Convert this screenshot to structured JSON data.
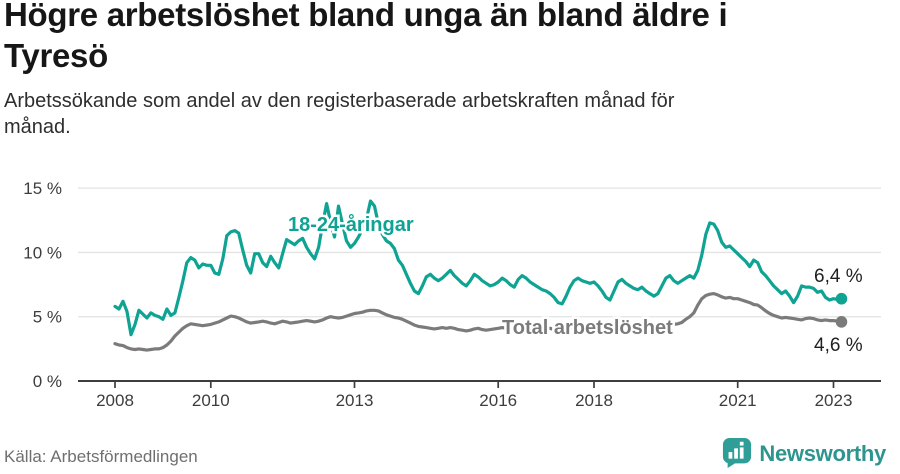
{
  "header": {
    "title_lines": [
      "Högre arbetslöshet bland unga än bland äldre i",
      "Tyresö"
    ],
    "subtitle_lines": [
      "Arbetssökande som andel av den registerbaserade arbetskraften månad för",
      "månad."
    ]
  },
  "footer": {
    "source": "Källa: Arbetsförmedlingen",
    "brand": "Newsworthy"
  },
  "colors": {
    "brand": "#2f9e96",
    "axis": "#3d3d3d",
    "grid": "#e3e3e3",
    "end_label_text": "#1f1f1f"
  },
  "chart_data": {
    "type": "line",
    "title": "Högre arbetslöshet bland unga än bland äldre i Tyresö",
    "subtitle": "Arbetssökande som andel av den registerbaserade arbetskraften månad för månad.",
    "unit": "%",
    "grid": "horizontal",
    "legend_position": "inline-labels",
    "x_start_year": 2008,
    "x_step_months": 1,
    "xlim": [
      2007.25,
      2024.0
    ],
    "ylim": [
      0,
      15.6
    ],
    "x_ticks": {
      "values": [
        2008,
        2010,
        2013,
        2016,
        2018,
        2021,
        2023
      ],
      "labels": [
        "2008",
        "2010",
        "2013",
        "2016",
        "2018",
        "2021",
        "2023"
      ]
    },
    "y_ticks": {
      "values": [
        0,
        5,
        10,
        15
      ],
      "labels": [
        "0 %",
        "5 %",
        "10 %",
        "15 %"
      ]
    },
    "series": [
      {
        "name": "18-24-åringar",
        "color": "#0ea393",
        "end_label": "6,4 %",
        "end_value": 6.4,
        "values": [
          5.8,
          5.6,
          6.2,
          5.4,
          3.6,
          4.4,
          5.5,
          5.2,
          4.9,
          5.3,
          5.1,
          5.0,
          4.8,
          5.6,
          5.1,
          5.3,
          6.5,
          7.8,
          9.2,
          9.6,
          9.4,
          8.8,
          9.1,
          9.0,
          9.0,
          8.4,
          8.3,
          9.5,
          11.3,
          11.6,
          11.7,
          11.5,
          10.2,
          9.0,
          8.4,
          9.9,
          9.9,
          9.2,
          8.9,
          9.7,
          9.2,
          8.8,
          9.9,
          11.0,
          10.8,
          10.6,
          10.9,
          11.1,
          10.4,
          9.9,
          9.5,
          10.4,
          12.2,
          13.8,
          12.4,
          11.2,
          13.6,
          12.2,
          10.9,
          10.4,
          10.7,
          11.2,
          11.8,
          12.6,
          14.0,
          13.6,
          12.2,
          11.4,
          10.9,
          10.7,
          10.3,
          9.4,
          9.0,
          8.3,
          7.6,
          7.0,
          6.8,
          7.4,
          8.1,
          8.3,
          8.0,
          7.8,
          8.0,
          8.3,
          8.6,
          8.2,
          7.9,
          7.6,
          7.4,
          7.8,
          8.3,
          8.1,
          7.8,
          7.6,
          7.4,
          7.5,
          7.7,
          8.0,
          7.8,
          7.5,
          7.3,
          7.9,
          8.2,
          8.0,
          7.7,
          7.5,
          7.3,
          7.1,
          7.0,
          6.8,
          6.5,
          6.1,
          6.0,
          6.6,
          7.3,
          7.8,
          8.0,
          7.8,
          7.7,
          7.6,
          7.7,
          7.4,
          7.0,
          6.5,
          6.3,
          7.0,
          7.7,
          7.9,
          7.6,
          7.4,
          7.2,
          7.1,
          7.3,
          7.0,
          6.8,
          6.6,
          6.8,
          7.4,
          8.0,
          8.2,
          7.8,
          7.6,
          7.8,
          8.0,
          8.2,
          8.0,
          8.6,
          9.8,
          11.4,
          12.3,
          12.2,
          11.7,
          10.8,
          10.4,
          10.5,
          10.2,
          9.9,
          9.6,
          9.3,
          8.9,
          9.4,
          9.2,
          8.5,
          8.2,
          7.8,
          7.4,
          7.1,
          6.8,
          7.0,
          6.6,
          6.1,
          6.6,
          7.4,
          7.3,
          7.3,
          7.2,
          6.9,
          7.0,
          6.5,
          6.3,
          6.4,
          6.35,
          6.4
        ]
      },
      {
        "name": "Total arbetslöshet",
        "color": "#7b7b7b",
        "end_label": "4,6 %",
        "end_value": 4.6,
        "values": [
          2.9,
          2.8,
          2.75,
          2.6,
          2.5,
          2.45,
          2.5,
          2.45,
          2.4,
          2.45,
          2.5,
          2.5,
          2.6,
          2.8,
          3.1,
          3.5,
          3.8,
          4.1,
          4.3,
          4.45,
          4.4,
          4.35,
          4.3,
          4.35,
          4.4,
          4.5,
          4.6,
          4.75,
          4.9,
          5.05,
          5.0,
          4.9,
          4.75,
          4.6,
          4.5,
          4.55,
          4.6,
          4.65,
          4.6,
          4.5,
          4.45,
          4.55,
          4.65,
          4.6,
          4.5,
          4.55,
          4.6,
          4.65,
          4.7,
          4.65,
          4.6,
          4.65,
          4.75,
          4.9,
          5.0,
          4.95,
          4.9,
          4.95,
          5.05,
          5.15,
          5.25,
          5.3,
          5.35,
          5.45,
          5.5,
          5.5,
          5.45,
          5.3,
          5.15,
          5.05,
          4.95,
          4.9,
          4.8,
          4.65,
          4.5,
          4.35,
          4.25,
          4.2,
          4.15,
          4.1,
          4.05,
          4.1,
          4.15,
          4.1,
          4.15,
          4.1,
          4.0,
          3.95,
          3.9,
          3.95,
          4.05,
          4.1,
          4.0,
          3.95,
          4.0,
          4.05,
          4.1,
          4.15,
          4.1,
          4.0,
          3.95,
          4.05,
          4.1,
          4.15,
          4.1,
          4.05,
          4.1,
          4.1,
          4.15,
          4.1,
          4.0,
          3.95,
          3.9,
          4.0,
          4.1,
          4.15,
          4.2,
          4.2,
          4.15,
          4.2,
          4.25,
          4.2,
          4.1,
          4.05,
          4.0,
          4.1,
          4.2,
          4.2,
          4.15,
          4.1,
          4.15,
          4.2,
          4.25,
          4.2,
          4.15,
          4.1,
          4.15,
          4.3,
          4.45,
          4.5,
          4.4,
          4.45,
          4.55,
          4.8,
          5.0,
          5.3,
          5.9,
          6.4,
          6.65,
          6.75,
          6.8,
          6.7,
          6.55,
          6.45,
          6.5,
          6.4,
          6.4,
          6.3,
          6.2,
          6.1,
          5.95,
          5.9,
          5.7,
          5.45,
          5.25,
          5.1,
          5.0,
          4.9,
          4.95,
          4.9,
          4.85,
          4.8,
          4.75,
          4.85,
          4.9,
          4.85,
          4.75,
          4.7,
          4.75,
          4.7,
          4.7,
          4.65,
          4.6
        ]
      }
    ]
  }
}
